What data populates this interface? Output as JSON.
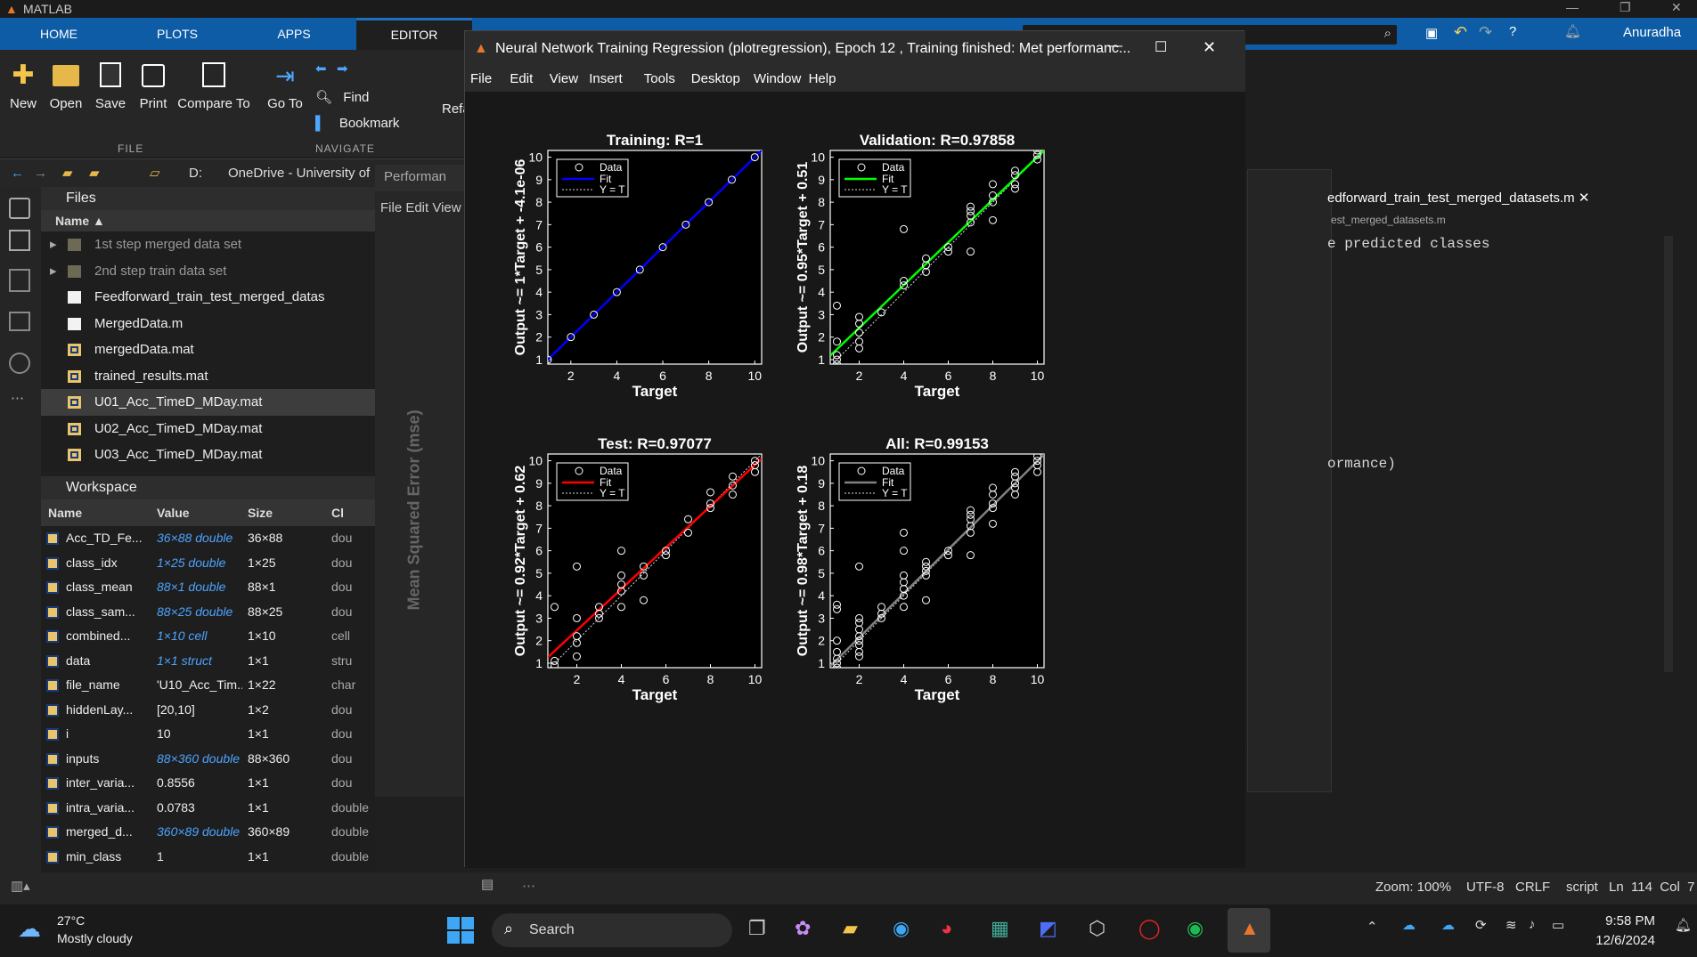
{
  "app": {
    "title": "MATLAB",
    "user": "Anuradha"
  },
  "tabs": [
    "HOME",
    "PLOTS",
    "APPS",
    "EDITOR"
  ],
  "ribbon": {
    "new": "New",
    "open": "Open",
    "save": "Save",
    "print": "Print",
    "compare": "Compare To",
    "goto": "Go To",
    "find": "Find",
    "bookmark": "Bookmark",
    "refactor": "Refa",
    "section_file": "FILE",
    "section_nav": "NAVIGATE"
  },
  "path": {
    "drive": "D:",
    "folder": "OneDrive - University of"
  },
  "files": {
    "header": "Files",
    "col_name": "Name",
    "items": [
      "1st step merged data set",
      "2nd step train data set",
      "Feedforward_train_test_merged_datas",
      "MergedData.m",
      "mergedData.mat",
      "trained_results.mat",
      "U01_Acc_TimeD_MDay.mat",
      "U02_Acc_TimeD_MDay.mat",
      "U03_Acc_TimeD_MDay.mat"
    ]
  },
  "workspace": {
    "header": "Workspace",
    "cols": [
      "Name",
      "Value",
      "Size",
      "Cl"
    ],
    "rows": [
      [
        "Acc_TD_Fe...",
        "36×88 double",
        "36×88",
        "dou"
      ],
      [
        "class_idx",
        "1×25 double",
        "1×25",
        "dou"
      ],
      [
        "class_mean",
        "88×1 double",
        "88×1",
        "dou"
      ],
      [
        "class_sam...",
        "88×25 double",
        "88×25",
        "dou"
      ],
      [
        "combined...",
        "1×10 cell",
        "1×10",
        "cell"
      ],
      [
        "data",
        "1×1 struct",
        "1×1",
        "stru"
      ],
      [
        "file_name",
        "'U10_Acc_Tim...",
        "1×22",
        "char"
      ],
      [
        "hiddenLay...",
        "[20,10]",
        "1×2",
        "dou"
      ],
      [
        "i",
        "10",
        "1×1",
        "dou"
      ],
      [
        "inputs",
        "88×360 double",
        "88×360",
        "dou"
      ],
      [
        "inter_varia...",
        "0.8556",
        "1×1",
        "dou"
      ],
      [
        "intra_varia...",
        "0.0783",
        "1×1",
        "double"
      ],
      [
        "merged_d...",
        "360×89 double",
        "360×89",
        "double"
      ],
      [
        "min_class",
        "1",
        "1×1",
        "double"
      ]
    ]
  },
  "perf_window": {
    "title": "Performan",
    "menu": "File  Edit  View",
    "ylabel": "Mean Squared Error  (mse)"
  },
  "editor": {
    "tab": "edforward_train_test_merged_datasets.m",
    "subpath": "est_merged_datasets.m",
    "code1": "e predicted classes",
    "code2": "ormance)",
    "num": "2"
  },
  "nn": {
    "title": "Neural Network Training Regression (plotregression), Epoch 12 , Training finished: Met performanc...",
    "menu": [
      "File",
      "Edit",
      "View",
      "Insert",
      "Tools",
      "Desktop",
      "Window",
      "Help"
    ]
  },
  "chart_data": [
    {
      "type": "scatter",
      "title": "Training: R=1",
      "xlabel": "Target",
      "ylabel": "Output ~= 1*Target + -4.1e-06",
      "xlim": [
        1,
        10.3
      ],
      "ylim": [
        0.8,
        10.3
      ],
      "xticks": [
        2,
        4,
        6,
        8,
        10
      ],
      "yticks": [
        1,
        2,
        3,
        4,
        5,
        6,
        7,
        8,
        9,
        10
      ],
      "fit_color": "#0000ff",
      "legend": [
        "Data",
        "Fit",
        "Y = T"
      ],
      "fit": {
        "slope": 1,
        "intercept": -4.1e-06
      },
      "points": [
        [
          1,
          1
        ],
        [
          2,
          2
        ],
        [
          3,
          3
        ],
        [
          4,
          4
        ],
        [
          5,
          5
        ],
        [
          6,
          6
        ],
        [
          7,
          7
        ],
        [
          8,
          8
        ],
        [
          9,
          9
        ],
        [
          10,
          10
        ]
      ]
    },
    {
      "type": "scatter",
      "title": "Validation: R=0.97858",
      "xlabel": "Target",
      "ylabel": "Output ~= 0.95*Target + 0.51",
      "xlim": [
        0.7,
        10.3
      ],
      "ylim": [
        0.8,
        10.3
      ],
      "xticks": [
        2,
        4,
        6,
        8,
        10
      ],
      "yticks": [
        1,
        2,
        3,
        4,
        5,
        6,
        7,
        8,
        9,
        10
      ],
      "fit_color": "#00ff00",
      "legend": [
        "Data",
        "Fit",
        "Y = T"
      ],
      "fit": {
        "slope": 0.95,
        "intercept": 0.51
      },
      "points": [
        [
          1,
          1
        ],
        [
          1,
          0.8
        ],
        [
          1,
          1.2
        ],
        [
          1,
          1.8
        ],
        [
          1,
          3.4
        ],
        [
          2,
          1.5
        ],
        [
          2,
          1.8
        ],
        [
          2,
          2.2
        ],
        [
          2,
          2.6
        ],
        [
          2,
          2.9
        ],
        [
          3,
          3.1
        ],
        [
          4,
          4.3
        ],
        [
          4,
          4.5
        ],
        [
          4,
          6.8
        ],
        [
          5,
          4.9
        ],
        [
          5,
          5.2
        ],
        [
          5,
          5.5
        ],
        [
          6,
          5.8
        ],
        [
          6,
          6
        ],
        [
          7,
          5.8
        ],
        [
          7,
          7.1
        ],
        [
          7,
          7.4
        ],
        [
          7,
          7.6
        ],
        [
          7,
          7.8
        ],
        [
          8,
          7.2
        ],
        [
          8,
          8
        ],
        [
          8,
          8.3
        ],
        [
          8,
          8.8
        ],
        [
          9,
          8.6
        ],
        [
          9,
          8.8
        ],
        [
          9,
          9.2
        ],
        [
          9,
          9.4
        ],
        [
          10,
          9.9
        ],
        [
          10,
          10.1
        ],
        [
          10,
          10.3
        ]
      ]
    },
    {
      "type": "scatter",
      "title": "Test: R=0.97077",
      "xlabel": "Target",
      "ylabel": "Output ~= 0.92*Target + 0.62",
      "xlim": [
        0.7,
        10.3
      ],
      "ylim": [
        0.8,
        10.3
      ],
      "xticks": [
        2,
        4,
        6,
        8,
        10
      ],
      "yticks": [
        1,
        2,
        3,
        4,
        5,
        6,
        7,
        8,
        9,
        10
      ],
      "fit_color": "#ff0000",
      "legend": [
        "Data",
        "Fit",
        "Y = T"
      ],
      "fit": {
        "slope": 0.92,
        "intercept": 0.62
      },
      "points": [
        [
          1,
          0.9
        ],
        [
          1,
          1.1
        ],
        [
          1,
          3.5
        ],
        [
          2,
          1.3
        ],
        [
          2,
          1.9
        ],
        [
          2,
          2.2
        ],
        [
          2,
          3
        ],
        [
          2,
          5.3
        ],
        [
          3,
          3
        ],
        [
          3,
          3.2
        ],
        [
          3,
          3.5
        ],
        [
          4,
          3.5
        ],
        [
          4,
          4.2
        ],
        [
          4,
          4.5
        ],
        [
          4,
          4.9
        ],
        [
          4,
          6
        ],
        [
          5,
          3.8
        ],
        [
          5,
          4.9
        ],
        [
          5,
          5.3
        ],
        [
          6,
          5.8
        ],
        [
          6,
          6
        ],
        [
          7,
          6.8
        ],
        [
          7,
          7.4
        ],
        [
          8,
          7.9
        ],
        [
          8,
          8.1
        ],
        [
          8,
          8.6
        ],
        [
          9,
          8.5
        ],
        [
          9,
          8.9
        ],
        [
          9,
          9.3
        ],
        [
          10,
          9.5
        ],
        [
          10,
          9.8
        ],
        [
          10,
          10
        ]
      ]
    },
    {
      "type": "scatter",
      "title": "All: R=0.99153",
      "xlabel": "Target",
      "ylabel": "Output ~= 0.98*Target + 0.18",
      "xlim": [
        0.7,
        10.3
      ],
      "ylim": [
        0.8,
        10.3
      ],
      "xticks": [
        2,
        4,
        6,
        8,
        10
      ],
      "yticks": [
        1,
        2,
        3,
        4,
        5,
        6,
        7,
        8,
        9,
        10
      ],
      "fit_color": "#808080",
      "legend": [
        "Data",
        "Fit",
        "Y = T"
      ],
      "fit": {
        "slope": 0.98,
        "intercept": 0.18
      },
      "points": [
        [
          1,
          0.8
        ],
        [
          1,
          1
        ],
        [
          1,
          1.2
        ],
        [
          1,
          1.5
        ],
        [
          1,
          2
        ],
        [
          1,
          3.4
        ],
        [
          1,
          3.6
        ],
        [
          2,
          1.3
        ],
        [
          2,
          1.5
        ],
        [
          2,
          1.8
        ],
        [
          2,
          2
        ],
        [
          2,
          2.2
        ],
        [
          2,
          2.5
        ],
        [
          2,
          2.8
        ],
        [
          2,
          3
        ],
        [
          2,
          5.3
        ],
        [
          3,
          3
        ],
        [
          3,
          3.2
        ],
        [
          3,
          3.5
        ],
        [
          4,
          3.5
        ],
        [
          4,
          4
        ],
        [
          4,
          4.3
        ],
        [
          4,
          4.6
        ],
        [
          4,
          4.9
        ],
        [
          4,
          6
        ],
        [
          4,
          6.8
        ],
        [
          5,
          3.8
        ],
        [
          5,
          4.9
        ],
        [
          5,
          5.1
        ],
        [
          5,
          5.3
        ],
        [
          5,
          5.5
        ],
        [
          6,
          5.8
        ],
        [
          6,
          6
        ],
        [
          7,
          5.8
        ],
        [
          7,
          6.8
        ],
        [
          7,
          7.1
        ],
        [
          7,
          7.4
        ],
        [
          7,
          7.6
        ],
        [
          7,
          7.8
        ],
        [
          8,
          7.2
        ],
        [
          8,
          7.9
        ],
        [
          8,
          8.1
        ],
        [
          8,
          8.5
        ],
        [
          8,
          8.8
        ],
        [
          9,
          8.5
        ],
        [
          9,
          8.8
        ],
        [
          9,
          9
        ],
        [
          9,
          9.3
        ],
        [
          9,
          9.5
        ],
        [
          10,
          9.5
        ],
        [
          10,
          9.8
        ],
        [
          10,
          10
        ],
        [
          10,
          10.2
        ]
      ]
    }
  ],
  "status": {
    "zoom": "Zoom: 100%",
    "enc": "UTF-8",
    "eol": "CRLF",
    "type": "script",
    "pos": "Ln  114  Col  7"
  },
  "taskbar": {
    "temp": "27°C",
    "weather": "Mostly cloudy",
    "search": "Search",
    "time": "9:58 PM",
    "date": "12/6/2024"
  }
}
